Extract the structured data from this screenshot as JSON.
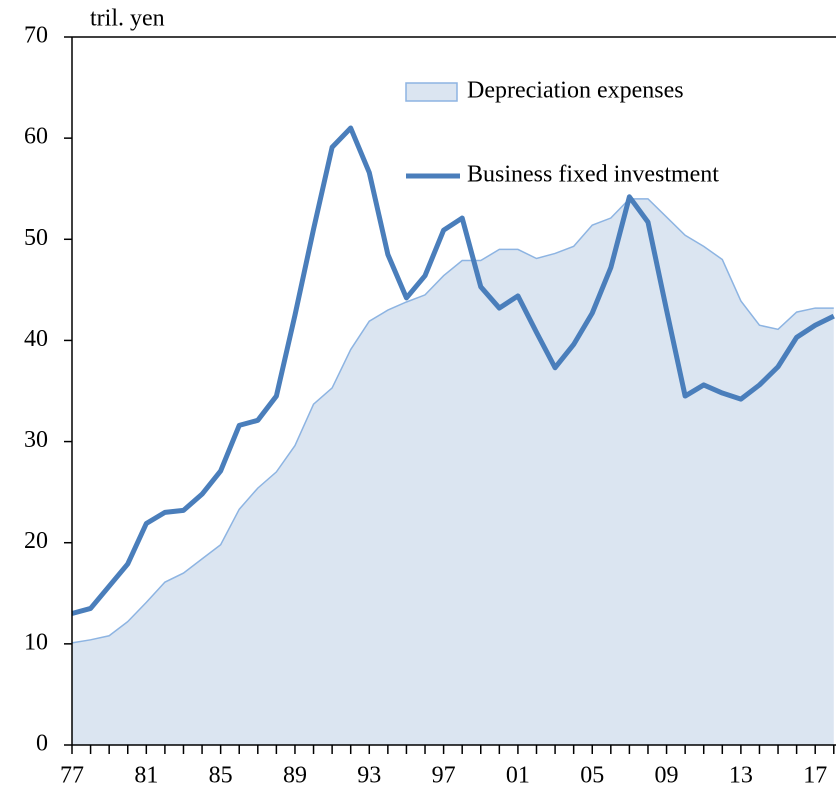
{
  "chart_data": {
    "type": "line",
    "y_label": "tril. yen",
    "categories": [
      "77",
      null,
      null,
      null,
      "81",
      null,
      null,
      null,
      "85",
      null,
      null,
      null,
      "89",
      null,
      null,
      null,
      "93",
      null,
      null,
      null,
      "97",
      null,
      null,
      null,
      "01",
      null,
      null,
      null,
      "05",
      null,
      null,
      null,
      "09",
      null,
      null,
      null,
      "13",
      null,
      null,
      null,
      "17",
      null
    ],
    "series": [
      {
        "name": "Depreciation expenses",
        "style": "area",
        "color": "#dbe5f1",
        "edge_color": "#8db4e2",
        "values": [
          10.1,
          10.4,
          10.8,
          12.2,
          14.1,
          16.1,
          17.0,
          18.4,
          19.8,
          23.3,
          25.4,
          27.0,
          29.6,
          33.7,
          35.3,
          39.1,
          41.9,
          43.0,
          43.8,
          44.5,
          46.4,
          47.9,
          47.9,
          49.0,
          49.0,
          48.1,
          48.6,
          49.3,
          51.4,
          52.1,
          54.0,
          54.0,
          52.2,
          50.4,
          49.3,
          48.0,
          43.9,
          41.5,
          41.1,
          42.8,
          43.2,
          43.2
        ]
      },
      {
        "name": "Business fixed investment",
        "style": "line",
        "color": "#4a7ebb",
        "values": [
          13.0,
          13.5,
          15.7,
          17.9,
          21.9,
          23.0,
          23.2,
          24.8,
          27.1,
          31.6,
          32.1,
          34.5,
          42.5,
          51.0,
          59.1,
          61.0,
          56.6,
          48.5,
          44.2,
          46.4,
          50.9,
          52.1,
          45.3,
          43.2,
          44.4,
          40.8,
          37.3,
          39.6,
          42.7,
          47.2,
          54.2,
          51.7,
          43.0,
          34.5,
          35.6,
          34.8,
          34.2,
          35.6,
          37.4,
          40.3,
          41.5,
          42.4
        ]
      }
    ],
    "ylim": [
      0,
      70
    ],
    "yticks": [
      0,
      10,
      20,
      30,
      40,
      50,
      60,
      70
    ],
    "grid": false
  }
}
